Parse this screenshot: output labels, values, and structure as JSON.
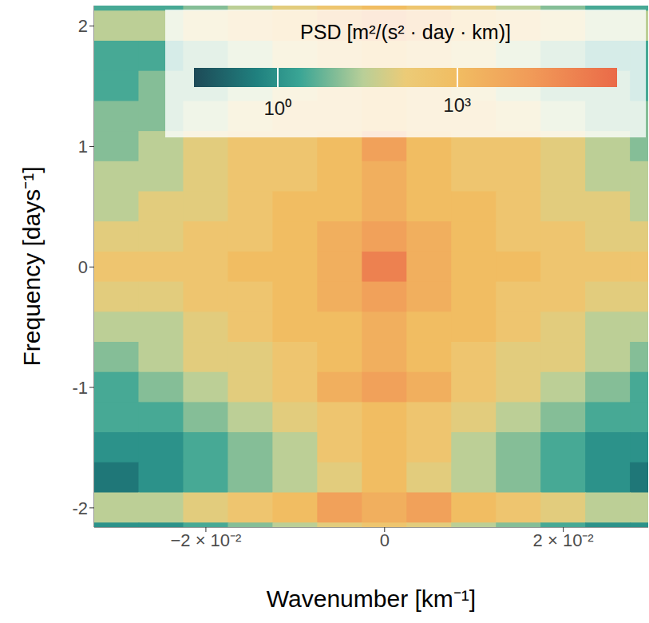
{
  "chart_data": {
    "type": "heatmap",
    "x_label": "Wavenumber [km⁻¹]",
    "y_label": "Frequency [days⁻¹]",
    "xlim": [
      -0.0325,
      0.0295
    ],
    "ylim": [
      -2.16,
      2.17
    ],
    "xticks": [
      {
        "value": -0.02,
        "label": "−2 × 10⁻²"
      },
      0,
      {
        "value": 0.02,
        "label": "2 × 10⁻²"
      }
    ],
    "yticks": [
      -2,
      -1,
      0,
      1,
      2
    ],
    "cells": {
      "x": [
        -0.03,
        -0.025,
        -0.02,
        -0.015,
        -0.01,
        -0.005,
        0,
        0.005,
        0.01,
        0.015,
        0.02,
        0.025,
        0.03
      ],
      "y": [
        2.25,
        2.0,
        1.75,
        1.5,
        1.25,
        1.0,
        0.75,
        0.5,
        0.25,
        0,
        -0.25,
        -0.5,
        -0.75,
        -1,
        -1.25,
        -1.5,
        -1.75,
        -2,
        -2.25
      ],
      "values": [
        [
          3,
          3,
          10,
          30,
          100,
          300,
          1000,
          300,
          100,
          30,
          10,
          3,
          3
        ],
        [
          30,
          30,
          100,
          300,
          1000,
          3000,
          10000,
          3000,
          1000,
          300,
          100,
          30,
          30
        ],
        [
          3,
          3,
          10,
          30,
          100,
          300,
          1000,
          300,
          100,
          30,
          10,
          3,
          3
        ],
        [
          3,
          10,
          10,
          30,
          100,
          300,
          1000,
          300,
          100,
          30,
          10,
          10,
          3
        ],
        [
          10,
          10,
          30,
          100,
          300,
          300,
          1000,
          300,
          300,
          100,
          30,
          10,
          10
        ],
        [
          10,
          30,
          100,
          300,
          300,
          1000,
          10000,
          1000,
          300,
          300,
          100,
          30,
          10
        ],
        [
          30,
          30,
          100,
          300,
          300,
          1000,
          3000,
          1000,
          300,
          300,
          100,
          30,
          30
        ],
        [
          30,
          100,
          100,
          300,
          1000,
          1000,
          3000,
          1000,
          1000,
          300,
          100,
          100,
          30
        ],
        [
          100,
          100,
          300,
          300,
          1000,
          3000,
          10000,
          3000,
          1000,
          300,
          300,
          100,
          100
        ],
        [
          300,
          300,
          300,
          1000,
          1000,
          3000,
          100000,
          3000,
          1000,
          1000,
          300,
          300,
          300
        ],
        [
          100,
          100,
          300,
          300,
          1000,
          3000,
          10000,
          3000,
          1000,
          300,
          300,
          100,
          100
        ],
        [
          30,
          30,
          100,
          300,
          1000,
          1000,
          3000,
          1000,
          1000,
          300,
          100,
          30,
          30
        ],
        [
          10,
          30,
          100,
          100,
          300,
          1000,
          3000,
          1000,
          300,
          100,
          100,
          30,
          10
        ],
        [
          3,
          10,
          30,
          100,
          300,
          3000,
          10000,
          3000,
          300,
          100,
          30,
          10,
          3
        ],
        [
          3,
          3,
          10,
          30,
          100,
          300,
          1000,
          300,
          100,
          30,
          10,
          3,
          3
        ],
        [
          1,
          1,
          3,
          10,
          30,
          300,
          1000,
          300,
          30,
          10,
          3,
          1,
          1
        ],
        [
          0.3,
          1,
          3,
          10,
          30,
          100,
          1000,
          100,
          30,
          10,
          3,
          1,
          0.3
        ],
        [
          30,
          30,
          100,
          300,
          1000,
          10000,
          3000,
          10000,
          1000,
          300,
          100,
          30,
          30
        ],
        [
          1,
          1,
          3,
          10,
          30,
          100,
          300,
          100,
          30,
          10,
          3,
          1,
          1
        ]
      ]
    },
    "colorbar": {
      "title": "PSD [m²/(s² · day · km)]",
      "range": [
        0.04,
        470000
      ],
      "ticks": [
        {
          "value": 1,
          "label": "10⁰"
        },
        {
          "value": 1000,
          "label": "10³"
        }
      ],
      "log": true
    }
  }
}
